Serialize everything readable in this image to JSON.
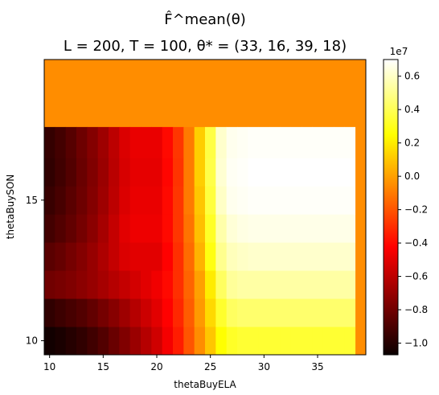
{
  "chart_data": {
    "type": "heatmap",
    "title_line1": "F̂^mean(θ)",
    "title_line2": "L = 200, T = 100, θ* = (33, 16, 39, 18)",
    "xlabel": "thetaBuyELA",
    "ylabel": "thetaBuySON",
    "x_range": [
      9.5,
      39.5
    ],
    "y_range": [
      9.5,
      20.0
    ],
    "x_ticks": [
      10,
      15,
      20,
      25,
      30,
      35
    ],
    "x_tick_labels": [
      "10",
      "15",
      "20",
      "25",
      "30",
      "35"
    ],
    "y_ticks": [
      10,
      15
    ],
    "y_tick_labels": [
      "10",
      "15"
    ],
    "colorbar": {
      "colormap": "hot",
      "min": -10700000.0,
      "max": 7000000.0,
      "ticks": [
        -1.0,
        -0.8,
        -0.6,
        -0.4,
        -0.2,
        0.0,
        0.2,
        0.4,
        0.6
      ],
      "tick_labels": [
        "−1.0",
        "−0.8",
        "−0.6",
        "−0.4",
        "−0.2",
        "0.0",
        "0.2",
        "0.4",
        "0.6"
      ],
      "scale_label": "1e7"
    },
    "x_columns": [
      10,
      11,
      12,
      13,
      14,
      15,
      16,
      17,
      18,
      19,
      20,
      21,
      22,
      23,
      24,
      25,
      26,
      27,
      28,
      29,
      30,
      31,
      32,
      33,
      34,
      35,
      36,
      37,
      38
    ],
    "filled_region_value": -500000.0,
    "rows": [
      {
        "y_center": 10.0,
        "y_low": 9.5,
        "y_high": 10.5,
        "values": [
          -1.05,
          -1.03,
          -1.0,
          -0.97,
          -0.93,
          -0.88,
          -0.82,
          -0.76,
          -0.69,
          -0.62,
          -0.55,
          -0.45,
          -0.35,
          -0.2,
          -0.05,
          0.1,
          0.25,
          0.32,
          0.34,
          0.34,
          0.34,
          0.34,
          0.34,
          0.34,
          0.34,
          0.34,
          0.34,
          0.34,
          0.34
        ]
      },
      {
        "y_center": 11.0,
        "y_low": 10.5,
        "y_high": 11.5,
        "values": [
          -0.97,
          -0.94,
          -0.91,
          -0.88,
          -0.84,
          -0.79,
          -0.74,
          -0.68,
          -0.62,
          -0.56,
          -0.5,
          -0.42,
          -0.32,
          -0.18,
          -0.02,
          0.15,
          0.33,
          0.42,
          0.44,
          0.44,
          0.44,
          0.44,
          0.44,
          0.44,
          0.44,
          0.44,
          0.44,
          0.44,
          0.44
        ]
      },
      {
        "y_center": 12.0,
        "y_low": 11.5,
        "y_high": 12.5,
        "values": [
          -0.8,
          -0.78,
          -0.76,
          -0.73,
          -0.7,
          -0.66,
          -0.62,
          -0.58,
          -0.54,
          -0.5,
          -0.46,
          -0.4,
          -0.3,
          -0.16,
          0.0,
          0.2,
          0.42,
          0.52,
          0.54,
          0.54,
          0.54,
          0.54,
          0.54,
          0.54,
          0.54,
          0.54,
          0.54,
          0.54,
          0.54
        ]
      },
      {
        "y_center": 13.0,
        "y_low": 12.5,
        "y_high": 13.5,
        "values": [
          -0.86,
          -0.83,
          -0.79,
          -0.75,
          -0.7,
          -0.64,
          -0.58,
          -0.52,
          -0.5,
          -0.5,
          -0.5,
          -0.42,
          -0.3,
          -0.14,
          0.05,
          0.28,
          0.5,
          0.58,
          0.6,
          0.61,
          0.61,
          0.61,
          0.61,
          0.61,
          0.61,
          0.61,
          0.61,
          0.61,
          0.61
        ]
      },
      {
        "y_center": 14.0,
        "y_low": 13.5,
        "y_high": 14.5,
        "values": [
          -0.92,
          -0.88,
          -0.84,
          -0.79,
          -0.73,
          -0.66,
          -0.58,
          -0.5,
          -0.47,
          -0.47,
          -0.47,
          -0.4,
          -0.28,
          -0.12,
          0.08,
          0.32,
          0.55,
          0.63,
          0.65,
          0.66,
          0.66,
          0.66,
          0.66,
          0.66,
          0.66,
          0.66,
          0.66,
          0.66,
          0.66
        ]
      },
      {
        "y_center": 15.0,
        "y_low": 14.5,
        "y_high": 15.5,
        "values": [
          -0.95,
          -0.91,
          -0.86,
          -0.81,
          -0.75,
          -0.68,
          -0.6,
          -0.52,
          -0.48,
          -0.48,
          -0.48,
          -0.4,
          -0.28,
          -0.1,
          0.1,
          0.36,
          0.6,
          0.67,
          0.68,
          0.69,
          0.69,
          0.69,
          0.69,
          0.69,
          0.69,
          0.69,
          0.69,
          0.69,
          0.69
        ]
      },
      {
        "y_center": 16.0,
        "y_low": 15.5,
        "y_high": 16.5,
        "values": [
          -0.97,
          -0.93,
          -0.88,
          -0.82,
          -0.76,
          -0.69,
          -0.61,
          -0.53,
          -0.49,
          -0.49,
          -0.49,
          -0.41,
          -0.29,
          -0.1,
          0.12,
          0.38,
          0.62,
          0.68,
          0.69,
          0.7,
          0.7,
          0.7,
          0.7,
          0.7,
          0.7,
          0.7,
          0.7,
          0.7,
          0.7
        ]
      },
      {
        "y_center": 17.0,
        "y_low": 16.5,
        "y_high": 17.6,
        "values": [
          -0.96,
          -0.92,
          -0.87,
          -0.81,
          -0.75,
          -0.68,
          -0.6,
          -0.52,
          -0.48,
          -0.48,
          -0.48,
          -0.4,
          -0.28,
          -0.1,
          0.12,
          0.37,
          0.61,
          0.67,
          0.68,
          0.69,
          0.69,
          0.69,
          0.69,
          0.69,
          0.69,
          0.69,
          0.69,
          0.69,
          0.69
        ]
      }
    ]
  }
}
